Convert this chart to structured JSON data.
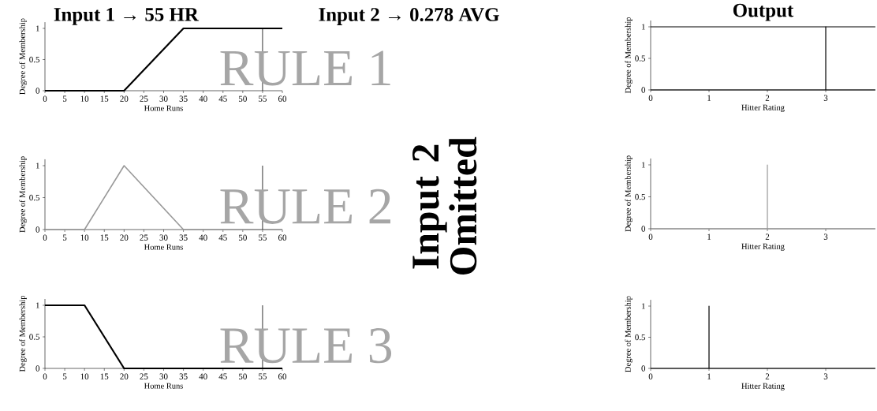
{
  "chart_data": [
    {
      "type": "line",
      "xlabel": "Home Runs",
      "ylabel": "Degree of Membership",
      "xlim": [
        0,
        60
      ],
      "ylim": [
        0,
        1.1
      ],
      "xticks": [
        0,
        5,
        10,
        15,
        20,
        25,
        30,
        35,
        40,
        45,
        50,
        55,
        60
      ],
      "yticks": [
        0,
        0.5,
        1
      ],
      "series": [
        {
          "color": "#000000",
          "x": [
            0,
            20,
            35,
            60
          ],
          "values": [
            0,
            0,
            1,
            1
          ]
        }
      ],
      "ref_lines": [
        {
          "axis": "x",
          "value": 55,
          "color": "#000000"
        }
      ],
      "annotations": [
        "Input 1 → 55 HR",
        "Input 2 → 0.278 AVG",
        "RULE 1"
      ]
    },
    {
      "type": "line",
      "xlabel": "Home Runs",
      "ylabel": "Degree of Membership",
      "xlim": [
        0,
        60
      ],
      "ylim": [
        0,
        1.1
      ],
      "xticks": [
        0,
        5,
        10,
        15,
        20,
        25,
        30,
        35,
        40,
        45,
        50,
        55,
        60
      ],
      "yticks": [
        0,
        0.5,
        1
      ],
      "series": [
        {
          "color": "#999999",
          "x": [
            0,
            10,
            20,
            35,
            60
          ],
          "values": [
            0,
            0,
            1,
            0,
            0
          ]
        }
      ],
      "ref_lines": [
        {
          "axis": "x",
          "value": 55,
          "color": "#000000"
        }
      ],
      "annotations": [
        "RULE 2",
        "Input 2 Omitted"
      ]
    },
    {
      "type": "line",
      "xlabel": "Home Runs",
      "ylabel": "Degree of Membership",
      "xlim": [
        0,
        60
      ],
      "ylim": [
        0,
        1.1
      ],
      "xticks": [
        0,
        5,
        10,
        15,
        20,
        25,
        30,
        35,
        40,
        45,
        50,
        55,
        60
      ],
      "yticks": [
        0,
        0.5,
        1
      ],
      "series": [
        {
          "color": "#000000",
          "x": [
            0,
            10,
            20,
            60
          ],
          "values": [
            1,
            1,
            0,
            0
          ]
        }
      ],
      "ref_lines": [
        {
          "axis": "x",
          "value": 55,
          "color": "#000000"
        }
      ],
      "annotations": [
        "RULE 3"
      ]
    },
    {
      "type": "line",
      "title": "Output",
      "xlabel": "Hitter Rating",
      "ylabel": "Degree of Membership",
      "xlim": [
        0,
        3.85
      ],
      "ylim": [
        0,
        1.1
      ],
      "xticks": [
        0,
        1,
        2,
        3
      ],
      "yticks": [
        0,
        0.5,
        1
      ],
      "series": [
        {
          "color": "#000000",
          "x": [
            0,
            3.85
          ],
          "values": [
            1,
            1
          ]
        },
        {
          "color": "#000000",
          "x": [
            0,
            3,
            3,
            3,
            3.85
          ],
          "values": [
            0,
            0,
            1,
            0,
            0
          ]
        }
      ]
    },
    {
      "type": "line",
      "xlabel": "Hitter Rating",
      "ylabel": "Degree of Membership",
      "xlim": [
        0,
        3.85
      ],
      "ylim": [
        0,
        1.1
      ],
      "xticks": [
        0,
        1,
        2,
        3
      ],
      "yticks": [
        0,
        0.5,
        1
      ],
      "series": [
        {
          "color": "#999999",
          "x": [
            0,
            2,
            2,
            2,
            3.85
          ],
          "values": [
            0,
            0,
            1,
            0,
            0
          ]
        }
      ]
    },
    {
      "type": "line",
      "xlabel": "Hitter Rating",
      "ylabel": "Degree of Membership",
      "xlim": [
        0,
        3.85
      ],
      "ylim": [
        0,
        1.1
      ],
      "xticks": [
        0,
        1,
        2,
        3
      ],
      "yticks": [
        0,
        0.5,
        1
      ],
      "series": [
        {
          "color": "#000000",
          "x": [
            0,
            1,
            1,
            1,
            3.85
          ],
          "values": [
            0,
            0,
            1,
            0,
            0
          ]
        }
      ]
    }
  ]
}
